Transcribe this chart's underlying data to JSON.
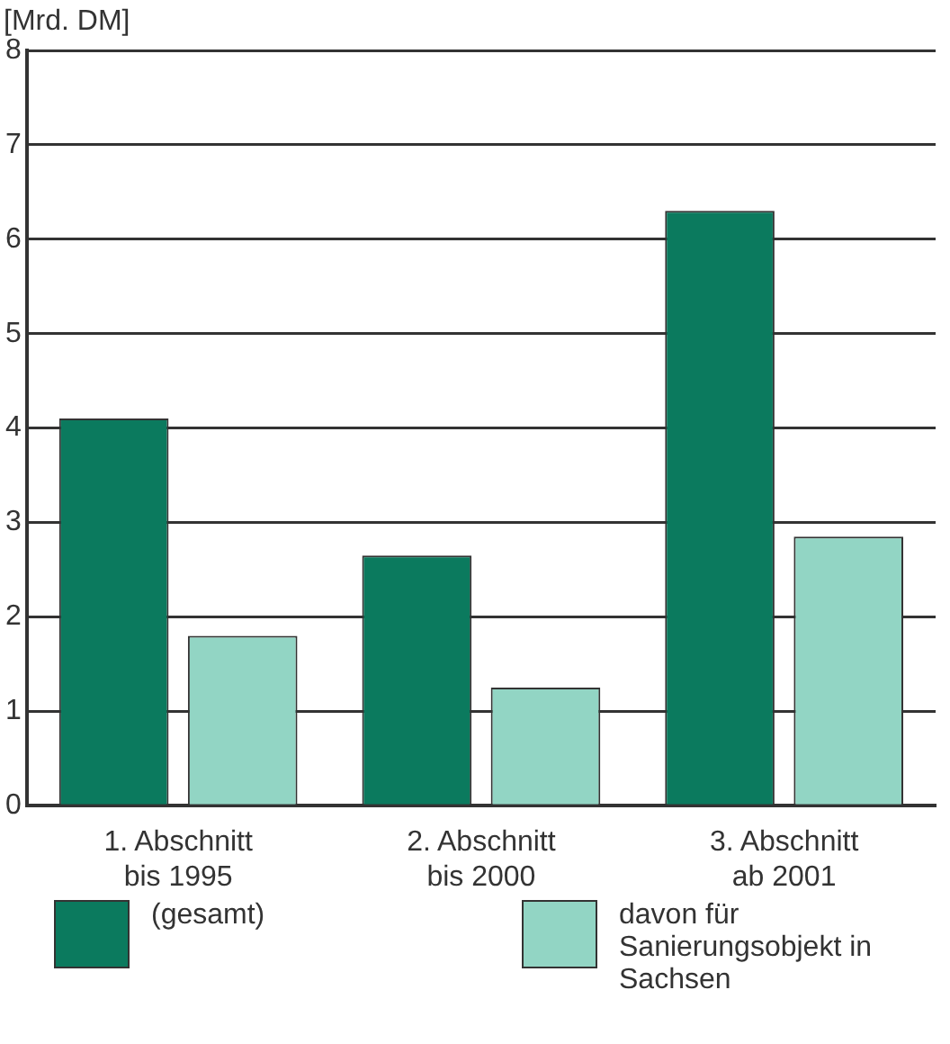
{
  "chart_data": {
    "type": "bar",
    "ylabel": "[Mrd. DM]",
    "categories": [
      "1. Abschnitt\nbis 1995",
      "2. Abschnitt\nbis 2000",
      "3. Abschnitt\nab 2001"
    ],
    "series": [
      {
        "name": "(gesamt)",
        "color": "#0b7a5e",
        "values": [
          4.1,
          2.65,
          6.3
        ]
      },
      {
        "name": "davon für Sanierungsobjekt in Sachsen",
        "color": "#92d5c4",
        "values": [
          1.8,
          1.25,
          2.85
        ]
      }
    ],
    "ylim": [
      0,
      8
    ],
    "yticks": [
      0,
      1,
      2,
      3,
      4,
      5,
      6,
      7,
      8
    ],
    "grid": "y",
    "legend": "bottom"
  }
}
